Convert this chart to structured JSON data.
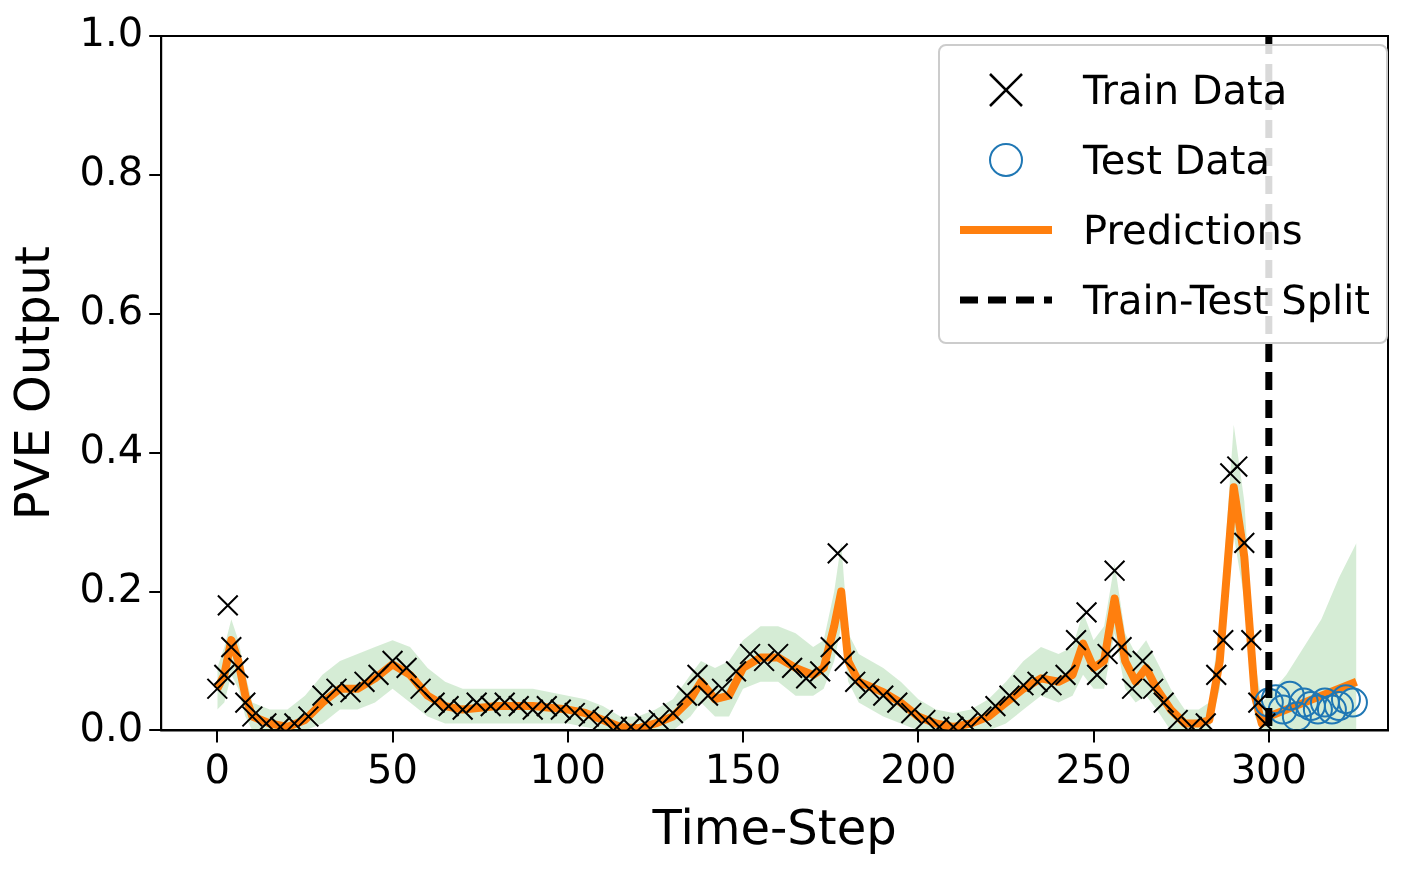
{
  "chart_data": {
    "type": "scatter",
    "xlabel": "Time-Step",
    "ylabel": "PVE Output",
    "xlim": [
      -16,
      334
    ],
    "xticks": [
      0,
      50,
      100,
      150,
      200,
      250,
      300
    ],
    "ylim": [
      0,
      1
    ],
    "yticks": [
      {
        "value": 0,
        "label": "0.0"
      },
      {
        "value": 0.2,
        "label": "0.2"
      },
      {
        "value": 0.4,
        "label": "0.4"
      },
      {
        "value": 0.6,
        "label": "0.6"
      },
      {
        "value": 0.8,
        "label": "0.8"
      },
      {
        "value": 1,
        "label": "1.0"
      }
    ],
    "grid": false,
    "legend": "top right",
    "series": [
      {
        "name": "Train Data",
        "type": "scatter",
        "marker": "cross",
        "color": "#000000",
        "x": [
          0,
          2,
          3,
          4,
          6,
          8,
          10,
          14,
          18,
          22,
          26,
          30,
          34,
          38,
          42,
          46,
          50,
          54,
          58,
          62,
          66,
          70,
          74,
          78,
          82,
          86,
          90,
          94,
          98,
          102,
          106,
          110,
          114,
          118,
          122,
          126,
          130,
          134,
          137,
          140,
          144,
          148,
          152,
          156,
          160,
          164,
          168,
          172,
          175,
          177,
          179,
          182,
          186,
          190,
          194,
          198,
          202,
          206,
          210,
          214,
          218,
          222,
          226,
          230,
          234,
          238,
          242,
          245,
          248,
          251,
          254,
          256,
          258,
          261,
          264,
          267,
          270,
          274,
          278,
          282,
          285,
          287,
          289,
          291,
          293,
          295,
          297,
          299
        ],
        "values": [
          0.06,
          0.08,
          0.18,
          0.12,
          0.09,
          0.04,
          0.02,
          0.01,
          0.005,
          0.01,
          0.02,
          0.05,
          0.06,
          0.055,
          0.07,
          0.08,
          0.1,
          0.09,
          0.06,
          0.04,
          0.035,
          0.03,
          0.04,
          0.035,
          0.04,
          0.035,
          0.03,
          0.035,
          0.03,
          0.025,
          0.02,
          0.015,
          0.005,
          0.005,
          0.01,
          0.015,
          0.025,
          0.05,
          0.08,
          0.05,
          0.06,
          0.085,
          0.11,
          0.1,
          0.11,
          0.09,
          0.075,
          0.085,
          0.12,
          0.255,
          0.1,
          0.07,
          0.06,
          0.05,
          0.04,
          0.025,
          0.015,
          0.005,
          0.005,
          0.01,
          0.02,
          0.035,
          0.05,
          0.065,
          0.07,
          0.065,
          0.08,
          0.13,
          0.17,
          0.08,
          0.11,
          0.23,
          0.12,
          0.06,
          0.1,
          0.06,
          0.04,
          0.015,
          0.005,
          0.01,
          0.08,
          0.13,
          0.37,
          0.38,
          0.27,
          0.13,
          0.04,
          0.01
        ]
      },
      {
        "name": "Test Data",
        "type": "scatter",
        "marker": "circle",
        "color": "#1f77b4",
        "x": [
          300,
          302,
          304,
          306,
          308,
          310,
          312,
          314,
          316,
          318,
          320,
          322,
          324
        ],
        "values": [
          0.04,
          0.045,
          0.03,
          0.05,
          0.02,
          0.04,
          0.035,
          0.03,
          0.04,
          0.03,
          0.035,
          0.045,
          0.04
        ]
      },
      {
        "name": "Predictions",
        "type": "line",
        "marker": "none",
        "color": "#ff7f0e",
        "x": [
          0,
          2,
          4,
          6,
          8,
          10,
          15,
          20,
          25,
          30,
          35,
          40,
          45,
          50,
          55,
          60,
          65,
          70,
          80,
          90,
          100,
          105,
          110,
          115,
          120,
          125,
          130,
          135,
          138,
          142,
          146,
          150,
          155,
          160,
          165,
          170,
          173,
          176,
          178,
          180,
          183,
          190,
          195,
          200,
          205,
          210,
          215,
          220,
          225,
          230,
          235,
          240,
          244,
          247,
          250,
          253,
          256,
          259,
          262,
          265,
          268,
          272,
          276,
          280,
          283,
          286,
          290,
          293,
          296,
          298,
          300,
          305,
          310,
          315,
          320,
          325
        ],
        "values": [
          0.06,
          0.08,
          0.13,
          0.1,
          0.05,
          0.02,
          0.01,
          0.005,
          0.015,
          0.04,
          0.06,
          0.06,
          0.075,
          0.095,
          0.08,
          0.05,
          0.035,
          0.03,
          0.035,
          0.035,
          0.03,
          0.025,
          0.015,
          0.005,
          0.003,
          0.01,
          0.02,
          0.045,
          0.07,
          0.045,
          0.05,
          0.09,
          0.105,
          0.105,
          0.09,
          0.08,
          0.09,
          0.15,
          0.2,
          0.1,
          0.07,
          0.055,
          0.04,
          0.02,
          0.01,
          0.005,
          0.01,
          0.02,
          0.04,
          0.06,
          0.075,
          0.07,
          0.08,
          0.125,
          0.09,
          0.1,
          0.19,
          0.1,
          0.07,
          0.09,
          0.06,
          0.03,
          0.01,
          0.01,
          0.015,
          0.1,
          0.35,
          0.25,
          0.05,
          0.01,
          0.02,
          0.03,
          0.04,
          0.05,
          0.06,
          0.07
        ],
        "lower": [
          0.03,
          0.04,
          0.08,
          0.06,
          0.02,
          0,
          0,
          0,
          0,
          0.01,
          0.03,
          0.03,
          0.04,
          0.06,
          0.04,
          0.02,
          0.01,
          0.01,
          0.01,
          0.01,
          0.01,
          0.005,
          0,
          0,
          0,
          0,
          0,
          0.02,
          0.04,
          0.02,
          0.02,
          0.06,
          0.07,
          0.07,
          0.05,
          0.05,
          0.06,
          0.1,
          0.15,
          0.07,
          0.04,
          0.02,
          0.01,
          0,
          0,
          0,
          0,
          0,
          0.01,
          0.03,
          0.05,
          0.04,
          0.05,
          0.08,
          0.06,
          0.06,
          0.14,
          0.06,
          0.04,
          0.05,
          0.03,
          0,
          0,
          0,
          0,
          0.06,
          0.28,
          0.19,
          0.02,
          0,
          0,
          0,
          0,
          0,
          0,
          0
        ],
        "upper": [
          0.09,
          0.12,
          0.16,
          0.13,
          0.08,
          0.04,
          0.03,
          0.03,
          0.05,
          0.08,
          0.1,
          0.11,
          0.12,
          0.13,
          0.12,
          0.09,
          0.07,
          0.06,
          0.06,
          0.06,
          0.05,
          0.045,
          0.035,
          0.02,
          0.02,
          0.03,
          0.045,
          0.08,
          0.1,
          0.09,
          0.1,
          0.13,
          0.15,
          0.15,
          0.14,
          0.12,
          0.13,
          0.2,
          0.27,
          0.14,
          0.11,
          0.09,
          0.07,
          0.045,
          0.03,
          0.025,
          0.03,
          0.045,
          0.07,
          0.1,
          0.12,
          0.11,
          0.12,
          0.17,
          0.13,
          0.15,
          0.24,
          0.14,
          0.11,
          0.13,
          0.1,
          0.06,
          0.03,
          0.03,
          0.04,
          0.15,
          0.44,
          0.33,
          0.1,
          0.04,
          0.05,
          0.08,
          0.12,
          0.16,
          0.22,
          0.27
        ]
      }
    ],
    "ref_lines": [
      {
        "axis": "x",
        "value": 300,
        "label": "Train-Test Split",
        "color": "#000000",
        "line_style": "dashed"
      }
    ]
  }
}
